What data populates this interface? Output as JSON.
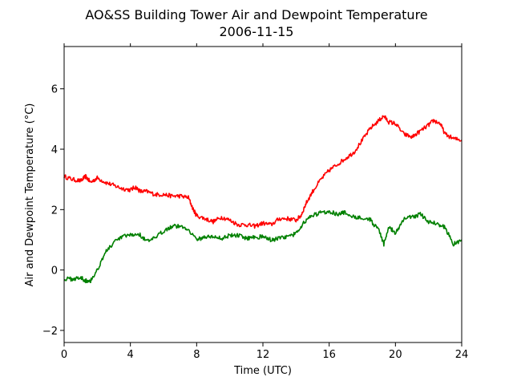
{
  "chart_data": {
    "type": "line",
    "title": "AO&SS Building Tower Air and Dewpoint Temperature",
    "subtitle": "2006-11-15",
    "xlabel": "Time (UTC)",
    "ylabel": "Air and Dewpoint Temperature (°C)",
    "xlim": [
      0,
      24
    ],
    "ylim": [
      -2.4,
      7.4
    ],
    "xticks": [
      0,
      4,
      8,
      12,
      16,
      20,
      24
    ],
    "yticks": [
      -2,
      0,
      2,
      4,
      6
    ],
    "ytick_labels": [
      "−2",
      "0",
      "2",
      "4",
      "6"
    ],
    "grid": false,
    "legend": "none",
    "series": [
      {
        "color": "#ff0000",
        "x": [
          0,
          0.5,
          1,
          1.3,
          1.6,
          2,
          2.5,
          3,
          3.5,
          4,
          4.3,
          4.6,
          5,
          5.5,
          6,
          6.5,
          7,
          7.5,
          7.8,
          8,
          8.5,
          9,
          9.5,
          10,
          10.5,
          11,
          11.5,
          12,
          12.5,
          13,
          13.5,
          14,
          14.3,
          14.6,
          15,
          15.5,
          16,
          16.5,
          17,
          17.5,
          18,
          18.5,
          19,
          19.3,
          19.6,
          20,
          20.5,
          21,
          21.5,
          22,
          22.3,
          22.7,
          23,
          23.5,
          24
        ],
        "y": [
          3.1,
          3.0,
          2.95,
          3.1,
          2.9,
          3.05,
          2.9,
          2.8,
          2.7,
          2.65,
          2.75,
          2.6,
          2.6,
          2.5,
          2.5,
          2.45,
          2.45,
          2.4,
          2.0,
          1.8,
          1.7,
          1.6,
          1.75,
          1.65,
          1.5,
          1.5,
          1.45,
          1.55,
          1.5,
          1.7,
          1.7,
          1.65,
          1.8,
          2.2,
          2.6,
          3.0,
          3.3,
          3.5,
          3.7,
          3.9,
          4.3,
          4.7,
          4.95,
          5.1,
          4.9,
          4.85,
          4.5,
          4.4,
          4.6,
          4.8,
          4.95,
          4.85,
          4.5,
          4.35,
          4.3
        ]
      },
      {
        "color": "#008000",
        "x": [
          0,
          0.5,
          1,
          1.3,
          1.6,
          2,
          2.5,
          3,
          3.5,
          4,
          4.5,
          5,
          5.5,
          6,
          6.5,
          7,
          7.5,
          8,
          8.5,
          9,
          9.5,
          10,
          10.5,
          11,
          11.5,
          12,
          12.5,
          13,
          13.5,
          14,
          14.5,
          15,
          15.5,
          16,
          16.5,
          17,
          17.5,
          18,
          18.5,
          19,
          19.3,
          19.6,
          20,
          20.5,
          21,
          21.5,
          22,
          22.5,
          23,
          23.5,
          24
        ],
        "y": [
          -0.3,
          -0.3,
          -0.25,
          -0.35,
          -0.35,
          0.0,
          0.6,
          0.9,
          1.1,
          1.15,
          1.2,
          0.95,
          1.05,
          1.3,
          1.45,
          1.45,
          1.35,
          1.0,
          1.1,
          1.1,
          1.05,
          1.15,
          1.15,
          1.05,
          1.1,
          1.1,
          1.0,
          1.05,
          1.1,
          1.2,
          1.6,
          1.8,
          1.9,
          1.95,
          1.85,
          1.9,
          1.75,
          1.75,
          1.65,
          1.3,
          0.85,
          1.45,
          1.2,
          1.7,
          1.75,
          1.85,
          1.6,
          1.55,
          1.4,
          0.85,
          1.0
        ]
      }
    ]
  }
}
